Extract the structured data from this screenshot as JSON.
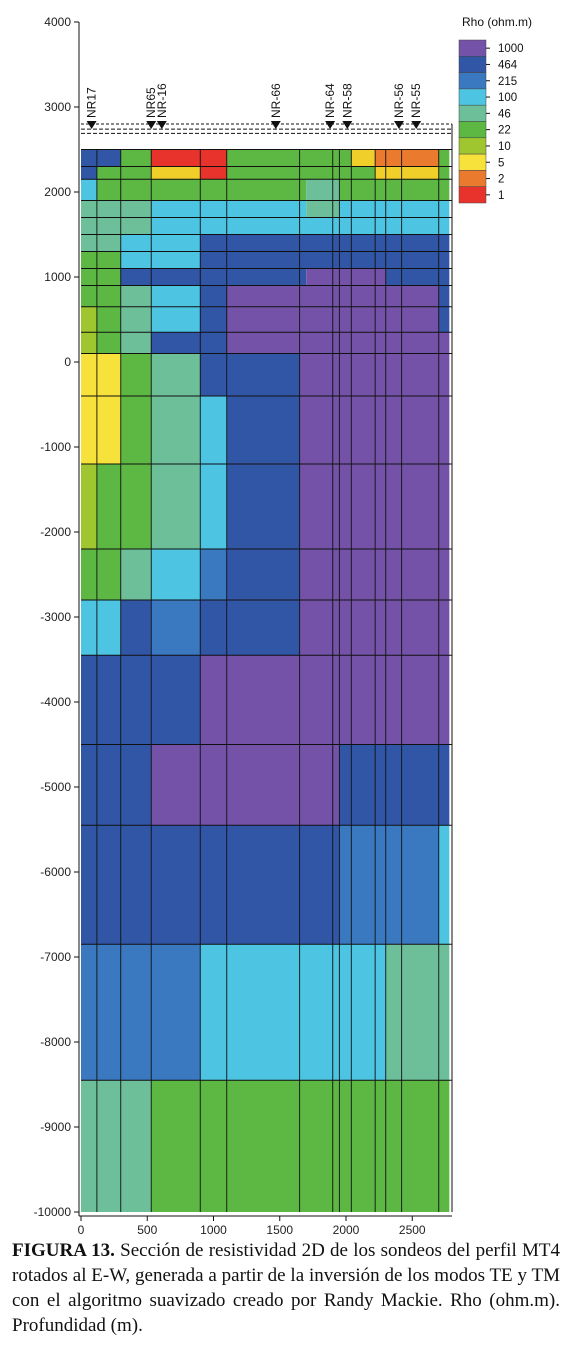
{
  "chart_data": {
    "type": "heatmap",
    "title": "",
    "xlabel": "",
    "ylabel": "",
    "xlim": [
      0,
      2800
    ],
    "ylim": [
      -10000,
      4000
    ],
    "x_ticks": [
      "0",
      "500",
      "1000",
      "1500",
      "2000",
      "2500"
    ],
    "y_ticks": [
      "4000",
      "3000",
      "2000",
      "1000",
      "0",
      "-1000",
      "-2000",
      "-3000",
      "-4000",
      "-5000",
      "-6000",
      "-7000",
      "-8000",
      "-9000",
      "-10000"
    ],
    "x_breaks": [
      0,
      120,
      220,
      300,
      530,
      900,
      1080,
      1100,
      1300,
      1650,
      1700,
      1900,
      1950,
      2040,
      2220,
      2300,
      2420,
      2500,
      2700,
      2780
    ],
    "y_layers": [
      {
        "top": 2500,
        "bottom": 2300,
        "code": "AAAAAQQQQAAAAAAAAGGGGFFQQR"
      },
      {
        "top": 2300,
        "bottom": 2150,
        "code": "BBAAAPPPPAAAAAAAAAGFFFFPPQQ"
      },
      {
        "top": 2150,
        "bottom": 1900,
        "code": "CBAAAAAAAAAACAAAAAAAAAA"
      },
      {
        "top": 1900,
        "bottom": 1700,
        "code": "DDDCCCCCCCCCCCDDCCCCCC"
      },
      {
        "top": 1700,
        "bottom": 1500,
        "code": "DDDCCCCCCCCCCCCCCCCCCC"
      },
      {
        "top": 1500,
        "bottom": 1300,
        "code": "DDDCEEEEEEEEEEEEEEEEEE"
      },
      {
        "top": 1300,
        "bottom": 1100,
        "code": "AADCEEEEEEEEEEEEEEEEEE"
      },
      {
        "top": 1100,
        "bottom": 900,
        "code": "AADDFFEEEEEFFFFFFFEEEE"
      },
      {
        "top": 900,
        "bottom": 650,
        "code": "AADDCEFFFFFFFFFFFFFFFE"
      },
      {
        "top": 650,
        "bottom": 350,
        "code": "GAADCEFFFFFFFFFFFFFFFE"
      },
      {
        "top": 350,
        "bottom": 100,
        "code": "GAADCEFFFFFFFFFFFFFFFF"
      }
    ],
    "rows": [
      {
        "top": 2500,
        "bottom": 2300,
        "cells": [
          [
            "#3256a6",
            0,
            300
          ],
          [
            "#5cb843",
            300,
            530
          ],
          [
            "#e8332c",
            530,
            900
          ],
          [
            "#e8332c",
            900,
            1100
          ],
          [
            "#5cb843",
            1100,
            1900
          ],
          [
            "#5cb843",
            1900,
            2040
          ],
          [
            "#f0cf2a",
            2040,
            2220
          ],
          [
            "#ea7b2e",
            2220,
            2300
          ],
          [
            "#ea7b2e",
            2300,
            2700
          ],
          [
            "#5cb843",
            2700,
            2780
          ]
        ]
      },
      {
        "top": 2300,
        "bottom": 2150,
        "cells": [
          [
            "#3256a6",
            0,
            120
          ],
          [
            "#5cb843",
            120,
            530
          ],
          [
            "#f0cf2a",
            530,
            900
          ],
          [
            "#e8332c",
            900,
            1100
          ],
          [
            "#5cb843",
            1100,
            2040
          ],
          [
            "#5cb843",
            2040,
            2220
          ],
          [
            "#f0cf2a",
            2220,
            2300
          ],
          [
            "#f0cf2a",
            2300,
            2700
          ],
          [
            "#5cb843",
            2700,
            2780
          ]
        ]
      },
      {
        "top": 2150,
        "bottom": 1900,
        "cells": [
          [
            "#4cc4e2",
            0,
            120
          ],
          [
            "#5cb843",
            120,
            1700
          ],
          [
            "#6dbf9a",
            1700,
            1950
          ],
          [
            "#5cb843",
            1950,
            2780
          ]
        ]
      },
      {
        "top": 1900,
        "bottom": 1700,
        "cells": [
          [
            "#6dbf9a",
            0,
            530
          ],
          [
            "#4cc4e2",
            530,
            1700
          ],
          [
            "#6dbf9a",
            1700,
            1950
          ],
          [
            "#4cc4e2",
            1950,
            2780
          ]
        ]
      },
      {
        "top": 1700,
        "bottom": 1500,
        "cells": [
          [
            "#6dbf9a",
            0,
            530
          ],
          [
            "#4cc4e2",
            530,
            2780
          ]
        ]
      },
      {
        "top": 1500,
        "bottom": 1300,
        "cells": [
          [
            "#6dbf9a",
            0,
            300
          ],
          [
            "#4cc4e2",
            300,
            900
          ],
          [
            "#3256a6",
            900,
            2780
          ]
        ]
      },
      {
        "top": 1300,
        "bottom": 1100,
        "cells": [
          [
            "#5cb843",
            0,
            300
          ],
          [
            "#4cc4e2",
            300,
            900
          ],
          [
            "#3256a6",
            900,
            2780
          ]
        ]
      },
      {
        "top": 1100,
        "bottom": 900,
        "cells": [
          [
            "#5cb843",
            0,
            300
          ],
          [
            "#3256a6",
            300,
            900
          ],
          [
            "#3256a6",
            900,
            1700
          ],
          [
            "#7452a8",
            1700,
            2300
          ],
          [
            "#3256a6",
            2300,
            2780
          ]
        ]
      },
      {
        "top": 900,
        "bottom": 650,
        "cells": [
          [
            "#5cb843",
            0,
            300
          ],
          [
            "#6dbf9a",
            300,
            530
          ],
          [
            "#4cc4e2",
            530,
            900
          ],
          [
            "#3256a6",
            900,
            1100
          ],
          [
            "#7452a8",
            1100,
            2700
          ],
          [
            "#3256a6",
            2700,
            2780
          ]
        ]
      },
      {
        "top": 650,
        "bottom": 350,
        "cells": [
          [
            "#9fc62f",
            0,
            120
          ],
          [
            "#5cb843",
            120,
            300
          ],
          [
            "#6dbf9a",
            300,
            530
          ],
          [
            "#4cc4e2",
            530,
            900
          ],
          [
            "#3256a6",
            900,
            1100
          ],
          [
            "#7452a8",
            1100,
            2700
          ],
          [
            "#3256a6",
            2700,
            2780
          ]
        ]
      },
      {
        "top": 350,
        "bottom": 100,
        "cells": [
          [
            "#9fc62f",
            0,
            120
          ],
          [
            "#5cb843",
            120,
            300
          ],
          [
            "#6dbf9a",
            300,
            530
          ],
          [
            "#3256a6",
            530,
            900
          ],
          [
            "#3256a6",
            900,
            1100
          ],
          [
            "#7452a8",
            1100,
            2780
          ]
        ]
      },
      {
        "top": 100,
        "bottom": -400,
        "cells": [
          [
            "#f6e23a",
            0,
            300
          ],
          [
            "#5cb843",
            300,
            530
          ],
          [
            "#6dbf9a",
            530,
            900
          ],
          [
            "#3256a6",
            900,
            1100
          ],
          [
            "#3256a6",
            1100,
            1650
          ],
          [
            "#7452a8",
            1650,
            2780
          ]
        ]
      },
      {
        "top": -400,
        "bottom": -1200,
        "cells": [
          [
            "#f6e23a",
            0,
            300
          ],
          [
            "#5cb843",
            300,
            530
          ],
          [
            "#6dbf9a",
            530,
            900
          ],
          [
            "#4cc4e2",
            900,
            1100
          ],
          [
            "#3256a6",
            1100,
            1650
          ],
          [
            "#7452a8",
            1650,
            2780
          ]
        ]
      },
      {
        "top": -1200,
        "bottom": -2200,
        "cells": [
          [
            "#9fc62f",
            0,
            120
          ],
          [
            "#5cb843",
            120,
            300
          ],
          [
            "#5cb843",
            300,
            530
          ],
          [
            "#6dbf9a",
            530,
            900
          ],
          [
            "#4cc4e2",
            900,
            1100
          ],
          [
            "#3256a6",
            1100,
            1650
          ],
          [
            "#7452a8",
            1650,
            2780
          ]
        ]
      },
      {
        "top": -2200,
        "bottom": -2800,
        "cells": [
          [
            "#5cb843",
            0,
            300
          ],
          [
            "#6dbf9a",
            300,
            530
          ],
          [
            "#4cc4e2",
            530,
            900
          ],
          [
            "#3a78c0",
            900,
            1100
          ],
          [
            "#3256a6",
            1100,
            1650
          ],
          [
            "#7452a8",
            1650,
            2780
          ]
        ]
      },
      {
        "top": -2800,
        "bottom": -3450,
        "cells": [
          [
            "#4cc4e2",
            0,
            300
          ],
          [
            "#3256a6",
            300,
            530
          ],
          [
            "#3a78c0",
            530,
            900
          ],
          [
            "#3256a6",
            900,
            1100
          ],
          [
            "#3256a6",
            1100,
            1650
          ],
          [
            "#7452a8",
            1650,
            2780
          ]
        ]
      },
      {
        "top": -3450,
        "bottom": -4500,
        "cells": [
          [
            "#3256a6",
            0,
            900
          ],
          [
            "#7452a8",
            900,
            2780
          ]
        ]
      },
      {
        "top": -4500,
        "bottom": -5450,
        "cells": [
          [
            "#3256a6",
            0,
            530
          ],
          [
            "#7452a8",
            530,
            1950
          ],
          [
            "#3256a6",
            1950,
            2780
          ]
        ]
      },
      {
        "top": -5450,
        "bottom": -6850,
        "cells": [
          [
            "#3256a6",
            0,
            1950
          ],
          [
            "#3a78c0",
            1950,
            2700
          ],
          [
            "#4cc4e2",
            2700,
            2780
          ]
        ]
      },
      {
        "top": -6850,
        "bottom": -8450,
        "cells": [
          [
            "#3a78c0",
            0,
            900
          ],
          [
            "#4cc4e2",
            900,
            2300
          ],
          [
            "#6dbf9a",
            2300,
            2780
          ]
        ]
      },
      {
        "top": -8450,
        "bottom": -10000,
        "cells": [
          [
            "#6dbf9a",
            0,
            530
          ],
          [
            "#5cb843",
            530,
            2780
          ]
        ]
      }
    ],
    "vertical_lines": [
      120,
      300,
      530,
      900,
      1100,
      1650,
      1900,
      1950,
      2040,
      2220,
      2300,
      2420,
      2700
    ],
    "horizontal_lines": [
      2500,
      2300,
      2150,
      1900,
      1700,
      1500,
      1300,
      1100,
      900,
      650,
      350,
      100,
      -400,
      -1200,
      -2200,
      -2800,
      -3450,
      -4500,
      -5450,
      -6850,
      -8450
    ],
    "surface_band": {
      "top": 2800,
      "bottom": 2500
    },
    "stations": [
      {
        "name": "NR17",
        "x": 80
      },
      {
        "name": "NR65",
        "x": 530
      },
      {
        "name": "NR-16",
        "x": 610
      },
      {
        "name": "NR-66",
        "x": 1470
      },
      {
        "name": "NR-64",
        "x": 1880
      },
      {
        "name": "NR-58",
        "x": 2010
      },
      {
        "name": "NR-56",
        "x": 2400
      },
      {
        "name": "NR-55",
        "x": 2530
      }
    ],
    "legend": {
      "title": "Rho (ohm.m)",
      "position": "top-right",
      "entries": [
        {
          "label": "1000",
          "color": "#7452a8"
        },
        {
          "label": "464",
          "color": "#3256a6"
        },
        {
          "label": "215",
          "color": "#3a78c0"
        },
        {
          "label": "100",
          "color": "#4cc4e2"
        },
        {
          "label": "46",
          "color": "#6dbf9a"
        },
        {
          "label": "22",
          "color": "#5cb843"
        },
        {
          "label": "10",
          "color": "#9fc62f"
        },
        {
          "label": "5",
          "color": "#f6e23a"
        },
        {
          "label": "2",
          "color": "#ea7b2e"
        },
        {
          "label": "1",
          "color": "#e8332c"
        }
      ]
    }
  },
  "caption": {
    "label": "FIGURA 13.",
    "text": " Sección de resistividad 2D de los sondeos del perfil MT4 rotados al E-W,  generada a partir de la inversión de los modos TE y TM  con el algoritmo suavizado creado por Randy Mackie. Rho (ohm.m). Profundidad (m)."
  }
}
